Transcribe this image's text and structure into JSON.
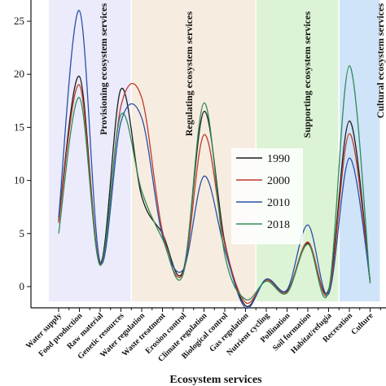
{
  "chart_data": {
    "type": "line",
    "xlabel": "Ecosystem services",
    "ylabel": "",
    "ylim": [
      -2,
      27
    ],
    "yticks": [
      0,
      5,
      10,
      15,
      20,
      25
    ],
    "categories": [
      "Water supply",
      "Food production",
      "Raw material",
      "Genetic resources",
      "Water regulation",
      "Waste treatment",
      "Erosion control",
      "Climate regulation",
      "Biological control",
      "Gas regulation",
      "Nutrient cycling",
      "Pollination",
      "Soil formation",
      "Habitat/refugia",
      "Recreation",
      "Culture"
    ],
    "bands": [
      {
        "label": "Provisioning ecosystem services",
        "from": 0,
        "to": 3,
        "color": "#ebebfb"
      },
      {
        "label": "Regulating ecosystem services",
        "from": 4,
        "to": 9,
        "color": "#f6ece0"
      },
      {
        "label": "Supporting ecosystem services",
        "from": 10,
        "to": 13,
        "color": "#dcf3d6"
      },
      {
        "label": "Cultural ecosystem services",
        "from": 14,
        "to": 15,
        "color": "#cfe4f8"
      }
    ],
    "series": [
      {
        "name": "1990",
        "color": "#1c1c1c",
        "values": [
          6.2,
          19.8,
          2.2,
          18.6,
          8.5,
          5.0,
          1.5,
          16.5,
          4.2,
          -1.8,
          0.7,
          -0.4,
          4.1,
          -0.3,
          15.6,
          0.5
        ]
      },
      {
        "name": "2000",
        "color": "#c0392b",
        "values": [
          6.0,
          19.0,
          2.1,
          17.0,
          17.8,
          5.2,
          1.3,
          14.3,
          4.0,
          -1.5,
          0.6,
          -0.5,
          4.2,
          -0.6,
          14.4,
          0.4
        ]
      },
      {
        "name": "2010",
        "color": "#2a4fa8",
        "values": [
          6.5,
          26.0,
          2.3,
          15.5,
          15.9,
          4.8,
          1.6,
          10.4,
          3.5,
          -2.0,
          0.7,
          -0.3,
          5.8,
          -0.7,
          12.1,
          0.6
        ]
      },
      {
        "name": "2018",
        "color": "#2e8b57",
        "values": [
          5.0,
          17.8,
          2.0,
          16.2,
          9.0,
          4.5,
          1.2,
          17.3,
          3.0,
          -1.2,
          0.5,
          -0.6,
          4.0,
          -0.4,
          20.8,
          0.3
        ]
      }
    ],
    "legend_position": "center-right"
  }
}
